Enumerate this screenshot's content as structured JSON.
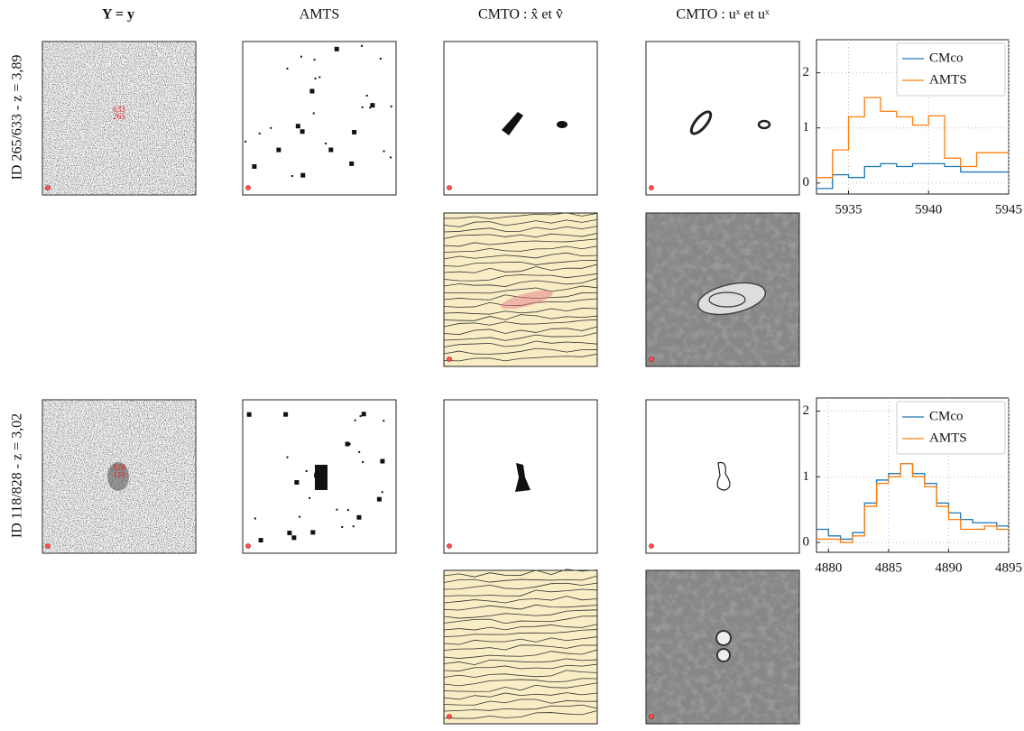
{
  "columns": [
    "Y = y",
    "AMTS",
    "CMTO : x̂ et v̂",
    "CMTO : uˣ et uˣ"
  ],
  "rows": [
    {
      "label": "ID 265/633 - z = 3,89",
      "image_labels": [
        "633",
        "265"
      ]
    },
    {
      "label": "ID 118/828 - z = 3,02",
      "image_labels": [
        "828",
        "118"
      ]
    }
  ],
  "chart_data": [
    {
      "type": "step",
      "x": [
        5933,
        5934,
        5935,
        5936,
        5937,
        5938,
        5939,
        5940,
        5941,
        5942,
        5943,
        5944
      ],
      "series": [
        {
          "name": "CMco",
          "color": "#1f77b4",
          "values": [
            -0.1,
            0.15,
            0.1,
            0.3,
            0.35,
            0.3,
            0.35,
            0.35,
            0.3,
            0.2,
            0.2,
            0.2
          ]
        },
        {
          "name": "AMTS",
          "color": "#ff7f0e",
          "values": [
            0.1,
            0.6,
            1.2,
            1.55,
            1.3,
            1.2,
            1.05,
            1.22,
            0.45,
            0.3,
            0.55,
            0.55
          ]
        }
      ],
      "xlim": [
        5933,
        5945
      ],
      "xticks": [
        5935,
        5940,
        5945
      ],
      "ylim": [
        -0.2,
        2.6
      ],
      "yticks": [
        0,
        1,
        2
      ],
      "grid": true,
      "legend": "upper right"
    },
    {
      "type": "step",
      "x": [
        4879,
        4880,
        4881,
        4882,
        4883,
        4884,
        4885,
        4886,
        4887,
        4888,
        4889,
        4890,
        4891,
        4892,
        4893,
        4894
      ],
      "series": [
        {
          "name": "CMco",
          "color": "#1f77b4",
          "values": [
            0.2,
            0.1,
            0.05,
            0.15,
            0.6,
            0.95,
            1.05,
            1.2,
            1.05,
            0.9,
            0.6,
            0.45,
            0.35,
            0.3,
            0.3,
            0.25
          ]
        },
        {
          "name": "AMTS",
          "color": "#ff7f0e",
          "values": [
            0.05,
            0.05,
            0.0,
            0.1,
            0.55,
            0.9,
            1.0,
            1.2,
            1.0,
            0.85,
            0.55,
            0.35,
            0.2,
            0.2,
            0.25,
            0.2
          ]
        }
      ],
      "xlim": [
        4879,
        4895
      ],
      "xticks": [
        4880,
        4885,
        4890,
        4895
      ],
      "ylim": [
        -0.15,
        2.2
      ],
      "yticks": [
        0,
        1,
        2
      ],
      "grid": true,
      "legend": "upper right"
    }
  ]
}
